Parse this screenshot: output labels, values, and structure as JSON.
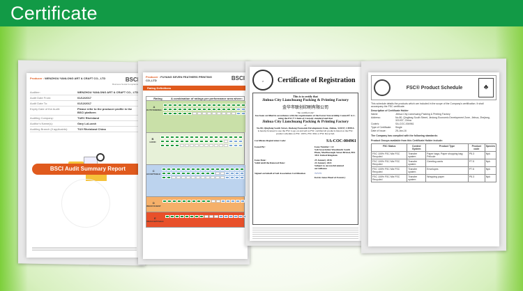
{
  "header": {
    "title": "Certificate"
  },
  "bsci": {
    "producer_label": "Producer :",
    "producer": "WENZHOU YANLONG ART & CRAFT CO., LTD",
    "logo": "BSCI",
    "logo_sub": "Business Social Compliance",
    "rows": [
      [
        "Auditee:",
        "WENZHOU YANLONG ART & CRAFT CO., LTD"
      ],
      [
        "Audit Date From:",
        "01/12/2017"
      ],
      [
        "Audit Date To:",
        "01/12/2017"
      ],
      [
        "Expiry Date of the Audit:",
        "Please refer to the producer profile in the BSCI platform"
      ],
      [
        "Auditing Company:",
        "TUEV Rheinland"
      ],
      [
        "Auditor's Name(s):",
        "Gary LuLuosh"
      ],
      [
        "Auditing Branch (if applicable):",
        "TUV Rheinland China"
      ]
    ],
    "report_title": "BSCI Audit Summary Report"
  },
  "rating": {
    "producer_label": "Producer :",
    "producer": "FUYANG SEVEN FEATHERS PRINTING CO.,LTD",
    "logo": "BSCI",
    "section": "Rating Definitions",
    "col_rating": "Rating",
    "col_combo": "A combination of ratings per performance area where:",
    "levels": [
      {
        "letter": "A",
        "name": "OUTSTANDING",
        "color": "#c9e0a8"
      },
      {
        "letter": "B",
        "name": "GOOD",
        "color": "#e7f1d8"
      },
      {
        "letter": "C",
        "name": "ACCEPTABLE",
        "color": "#bcd3ee"
      },
      {
        "letter": "D",
        "name": "INSUFFICIENT",
        "color": "#f5b06a"
      },
      {
        "letter": "E",
        "name": "UNACCEPTABLE",
        "color": "#e8502a"
      }
    ]
  },
  "registration": {
    "title": "Certificate of Registration",
    "seal": "SOIL ASSOCIATION WOODMARK",
    "certify": "This is to certify that",
    "company": "Jinhua City Lianchuang Packing & Printing Factory",
    "company_cn": "金华市联创印刷有限公司",
    "site": "\"the certified site\"",
    "certified": "has been certified in accordance with the requirements of the Forest Stewardship Council® A.C. using the FSC® Chain of Custody standard and that",
    "company2": "Jinhua City Lianchuang Packing & Printing Factory",
    "of": "of",
    "address": "No.80, Qingfang South Street, Jindong Economic Development Zone, Jinhua, 321037, CHINA",
    "licensed": "is hereby licensed to use the FSC Logo on and sell as FSC certified all products listed on the FSC product schedule as FSC 100%, FSC Mix or FSC Recycled.",
    "code_label": "Certificate Registration Code:",
    "code": "SA-COC-004961",
    "issued_by": "Issued By:",
    "issue_number": "Issue Number: 1.0",
    "issuer": "Soil Association Woodmark South Plaza, Marlborough Street Bristol, BS1 3NX United Kingdom",
    "issue_date_label": "Issue Date:",
    "valid_label": "Valid until the Renewal Date:",
    "issue_date": "25 January 2016",
    "valid_date": "24 January 2021",
    "subject": "Subject to successful annual surveillance",
    "signed": "Signed on behalf of Soil Association Certification",
    "signer": "Kevin Jones Head of Forestry"
  },
  "schedule": {
    "title": "FSC® Product Schedule",
    "intro": "This schedule details the products which are included in the scope of the Company's certification. It shall accompany the FSC certificate.",
    "desc": "Description of Certificate Holder",
    "fields": [
      [
        "Name:",
        "Jinhua City Lianchuang Packing & Printing Factory"
      ],
      [
        "Address:",
        "No.80, Qingfang South Street, Jindong Economic Development Zone, Jinhua, Zhejiang, 321037, China"
      ],
      [
        "Code/s:",
        "SA-COC-004961"
      ],
      [
        "Type of Certificate:",
        "Single"
      ],
      [
        "Date of Issue:",
        "25-Jan-16"
      ]
    ],
    "complied": "The Company has complied with the following standards:",
    "groups": "Product Groups available from this Certificate Holder include:",
    "columns": [
      "FSC Status",
      "Control System",
      "Product Type",
      "Product code",
      "Species"
    ],
    "rows": [
      [
        "FSC 100% FSC Mix FSC Recycled",
        "Transfer system",
        "Paper bags; Paper shopping bag; Pelicule",
        "P5.3",
        "Npk"
      ],
      [
        "FSC 100% FSC Mix FSC Recycled",
        "Transfer system",
        "Greeting cards",
        "P7.5",
        "Npk"
      ],
      [
        "FSC 100% FSC Mix FSC Recycled",
        "Transfer system",
        "Envelopes",
        "P7.6",
        "Npk"
      ],
      [
        "FSC 100% FSC Mix FSC Recycled",
        "Transfer system",
        "Wrapping paper",
        "P5.3",
        "Npk"
      ]
    ]
  }
}
